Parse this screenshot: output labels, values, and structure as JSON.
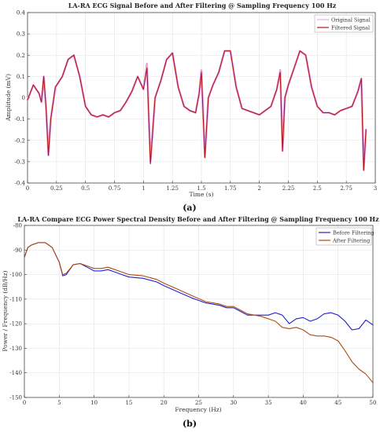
{
  "chart_data": [
    {
      "type": "line",
      "title": "LA-RA ECG Signal Before and After Filtering @ Sampling Frequency 100 Hz",
      "xlabel": "Time (s)",
      "ylabel": "Amplitude (mV)",
      "panel_label": "(a)",
      "xlim": [
        0,
        3
      ],
      "ylim": [
        -0.4,
        0.4
      ],
      "xticks": [
        0,
        0.25,
        0.5,
        0.75,
        1,
        1.25,
        1.5,
        1.75,
        2,
        2.25,
        2.5,
        2.75,
        3
      ],
      "xtick_labels": [
        "0",
        "0.25",
        "0.5",
        "0.75",
        "1",
        "1.25",
        "1.5",
        "1.75",
        "2",
        "2.25",
        "2.5",
        "2.75",
        "3"
      ],
      "yticks": [
        -0.4,
        -0.3,
        -0.2,
        -0.1,
        0,
        0.1,
        0.2,
        0.3,
        0.4
      ],
      "ytick_labels": [
        "-0.4",
        "-0.3",
        "-0.2",
        "-0.1",
        "0",
        "0.1",
        "0.2",
        "0.3",
        "0.4"
      ],
      "grid": true,
      "legend_position": "top-right",
      "x": [
        0,
        0.05,
        0.1,
        0.12,
        0.14,
        0.16,
        0.18,
        0.2,
        0.24,
        0.3,
        0.35,
        0.4,
        0.45,
        0.5,
        0.55,
        0.6,
        0.65,
        0.7,
        0.75,
        0.8,
        0.85,
        0.9,
        0.95,
        1.0,
        1.03,
        1.06,
        1.1,
        1.15,
        1.2,
        1.25,
        1.3,
        1.35,
        1.4,
        1.45,
        1.48,
        1.5,
        1.53,
        1.56,
        1.6,
        1.65,
        1.7,
        1.75,
        1.8,
        1.85,
        1.9,
        1.95,
        2.0,
        2.05,
        2.1,
        2.15,
        2.18,
        2.2,
        2.22,
        2.25,
        2.3,
        2.35,
        2.4,
        2.45,
        2.5,
        2.55,
        2.6,
        2.65,
        2.7,
        2.75,
        2.8,
        2.85,
        2.88,
        2.9,
        2.92
      ],
      "series": [
        {
          "name": "Original Signal",
          "color": "#e8a6e8",
          "y": [
            -0.01,
            0.06,
            0.02,
            -0.02,
            0.1,
            -0.05,
            -0.27,
            -0.1,
            0.05,
            0.1,
            0.18,
            0.2,
            0.1,
            -0.04,
            -0.08,
            -0.09,
            -0.08,
            -0.09,
            -0.07,
            -0.06,
            -0.02,
            0.03,
            0.1,
            0.04,
            0.16,
            -0.3,
            0.0,
            0.08,
            0.18,
            0.21,
            0.05,
            -0.04,
            -0.06,
            -0.07,
            0.02,
            0.13,
            -0.28,
            0.0,
            0.06,
            0.12,
            0.22,
            0.22,
            0.05,
            -0.05,
            -0.06,
            -0.07,
            -0.08,
            -0.06,
            -0.04,
            0.04,
            0.13,
            -0.25,
            0.0,
            0.06,
            0.14,
            0.22,
            0.2,
            0.05,
            -0.04,
            -0.07,
            -0.07,
            -0.08,
            -0.06,
            -0.05,
            -0.04,
            0.03,
            0.09,
            -0.34,
            -0.15
          ]
        },
        {
          "name": "Filtered Signal",
          "color": "#b01515",
          "y": [
            -0.01,
            0.06,
            0.02,
            -0.02,
            0.1,
            -0.05,
            -0.27,
            -0.1,
            0.05,
            0.1,
            0.18,
            0.2,
            0.1,
            -0.04,
            -0.08,
            -0.09,
            -0.08,
            -0.09,
            -0.07,
            -0.06,
            -0.02,
            0.03,
            0.1,
            0.04,
            0.14,
            -0.31,
            0.0,
            0.08,
            0.18,
            0.21,
            0.05,
            -0.04,
            -0.06,
            -0.07,
            0.02,
            0.12,
            -0.28,
            0.0,
            0.06,
            0.12,
            0.22,
            0.22,
            0.05,
            -0.05,
            -0.06,
            -0.07,
            -0.08,
            -0.06,
            -0.04,
            0.04,
            0.12,
            -0.25,
            0.0,
            0.06,
            0.14,
            0.22,
            0.2,
            0.05,
            -0.04,
            -0.07,
            -0.07,
            -0.08,
            -0.06,
            -0.05,
            -0.04,
            0.03,
            0.09,
            -0.34,
            -0.15
          ]
        }
      ]
    },
    {
      "type": "line",
      "title": "LA-RA Compare ECG Power Spectral Density Before and After Filtering @ Sampling Frequency 100 Hz",
      "xlabel": "Frequency (Hz)",
      "ylabel": "Power / Frequency (dB/Hz)",
      "panel_label": "(b)",
      "xlim": [
        0,
        50
      ],
      "ylim": [
        -150,
        -80
      ],
      "xticks": [
        0,
        5,
        10,
        15,
        20,
        25,
        30,
        35,
        40,
        45,
        50
      ],
      "xtick_labels": [
        "0",
        "5",
        "10",
        "15",
        "20",
        "25",
        "30",
        "35",
        "40",
        "45",
        "50"
      ],
      "yticks": [
        -150,
        -140,
        -130,
        -120,
        -110,
        -100,
        -90,
        -80
      ],
      "ytick_labels": [
        "-150",
        "-140",
        "-130",
        "-120",
        "-110",
        "-100",
        "-90",
        "-80"
      ],
      "grid": true,
      "legend_position": "top-right",
      "x": [
        0,
        0.5,
        1,
        2,
        3,
        4,
        5,
        5.5,
        6,
        7,
        8,
        9,
        10,
        11,
        12,
        13,
        14,
        15,
        17,
        19,
        20,
        22,
        24,
        26,
        28,
        29,
        30,
        31,
        32,
        33,
        34,
        35,
        36,
        37,
        38,
        39,
        40,
        41,
        42,
        43,
        44,
        45,
        46,
        47,
        48,
        49,
        50
      ],
      "series": [
        {
          "name": "Before Filtering",
          "color": "#2020d0",
          "y": [
            -93,
            -89,
            -88,
            -87,
            -87,
            -89,
            -95,
            -100.5,
            -100,
            -96,
            -95.5,
            -97,
            -98.5,
            -98.5,
            -98,
            -99,
            -100,
            -101,
            -101.5,
            -103,
            -104.5,
            -107,
            -109.5,
            -111.5,
            -112.5,
            -113.5,
            -113.5,
            -115,
            -116.5,
            -116.5,
            -116.5,
            -116.5,
            -115.5,
            -116.5,
            -120,
            -118,
            -117.5,
            -119,
            -118,
            -116,
            -115.5,
            -116.5,
            -119,
            -122.5,
            -122,
            -118.5,
            -120.5
          ]
        },
        {
          "name": "After Filtering",
          "color": "#b04a10",
          "y": [
            -93,
            -89,
            -88,
            -87,
            -87,
            -89,
            -95,
            -100,
            -99.5,
            -96,
            -95.5,
            -96.5,
            -97.5,
            -97.5,
            -97,
            -98,
            -99,
            -100,
            -100.5,
            -102,
            -103.5,
            -106,
            -108.5,
            -111,
            -112,
            -113,
            -113,
            -114.5,
            -116,
            -116.5,
            -117,
            -118,
            -119,
            -121.5,
            -122,
            -121.5,
            -122.5,
            -124.5,
            -125,
            -125,
            -125.5,
            -127,
            -131,
            -135.5,
            -138.5,
            -140.5,
            -144
          ]
        }
      ]
    }
  ]
}
